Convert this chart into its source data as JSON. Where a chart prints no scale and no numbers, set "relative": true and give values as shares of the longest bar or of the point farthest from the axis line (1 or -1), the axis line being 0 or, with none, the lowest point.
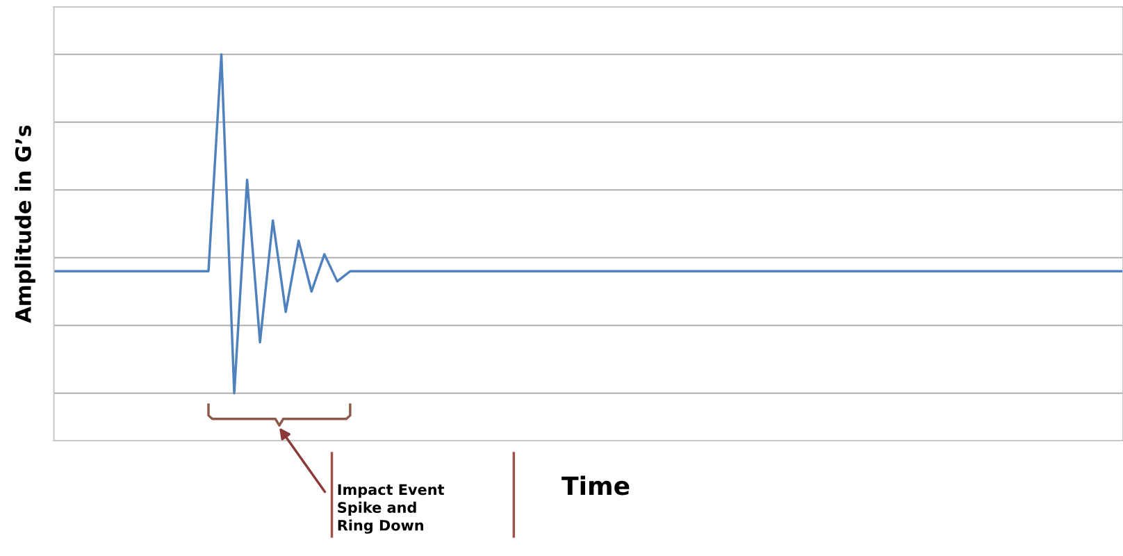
{
  "chart_data": {
    "type": "line",
    "relative": true,
    "xlabel": "Time",
    "ylabel": "Amplitude in G’s",
    "annotations": [
      "Impact Event\nSpike and\nRing Down"
    ],
    "categories": [
      null,
      null,
      null,
      null,
      null,
      null,
      null,
      null,
      null,
      null,
      null,
      null,
      null,
      null,
      null,
      null,
      null,
      null,
      null,
      null,
      null,
      null,
      null,
      null,
      null,
      null,
      null,
      null,
      null,
      null,
      null,
      null,
      null,
      null,
      null,
      null,
      null,
      null,
      null,
      null,
      null,
      null,
      null,
      null,
      null,
      null,
      null,
      null,
      null,
      null,
      null,
      null,
      null,
      null,
      null,
      null,
      null,
      null,
      null,
      null,
      null,
      null,
      null,
      null,
      null,
      null,
      null,
      null,
      null,
      null,
      null,
      null,
      null,
      null,
      null,
      null,
      null,
      null,
      null,
      null,
      null,
      null,
      null,
      null
    ],
    "series": [
      {
        "color": "#4f81bd",
        "values": [
          0.36,
          0.36,
          0.36,
          0.36,
          0.36,
          0.36,
          0.36,
          0.36,
          0.36,
          0.36,
          0.36,
          0.36,
          0.36,
          1.0,
          0,
          0.63,
          0.15,
          0.51,
          0.24,
          0.45,
          0.3,
          0.41,
          0.33,
          0.36,
          0.36,
          0.36,
          0.36,
          0.36,
          0.36,
          0.36,
          0.36,
          0.36,
          0.36,
          0.36,
          0.36,
          0.36,
          0.36,
          0.36,
          0.36,
          0.36,
          0.36,
          0.36,
          0.36,
          0.36,
          0.36,
          0.36,
          0.36,
          0.36,
          0.36,
          0.36,
          0.36,
          0.36,
          0.36,
          0.36,
          0.36,
          0.36,
          0.36,
          0.36,
          0.36,
          0.36,
          0.36,
          0.36,
          0.36,
          0.36,
          0.36,
          0.36,
          0.36,
          0.36,
          0.36,
          0.36,
          0.36,
          0.36,
          0.36,
          0.36,
          0.36,
          0.36,
          0.36,
          0.36,
          0.36,
          0.36,
          0.36,
          0.36,
          0.36,
          0.36
        ]
      }
    ],
    "grid": "y",
    "marker": "none",
    "line_style": "solid",
    "legend": false
  }
}
